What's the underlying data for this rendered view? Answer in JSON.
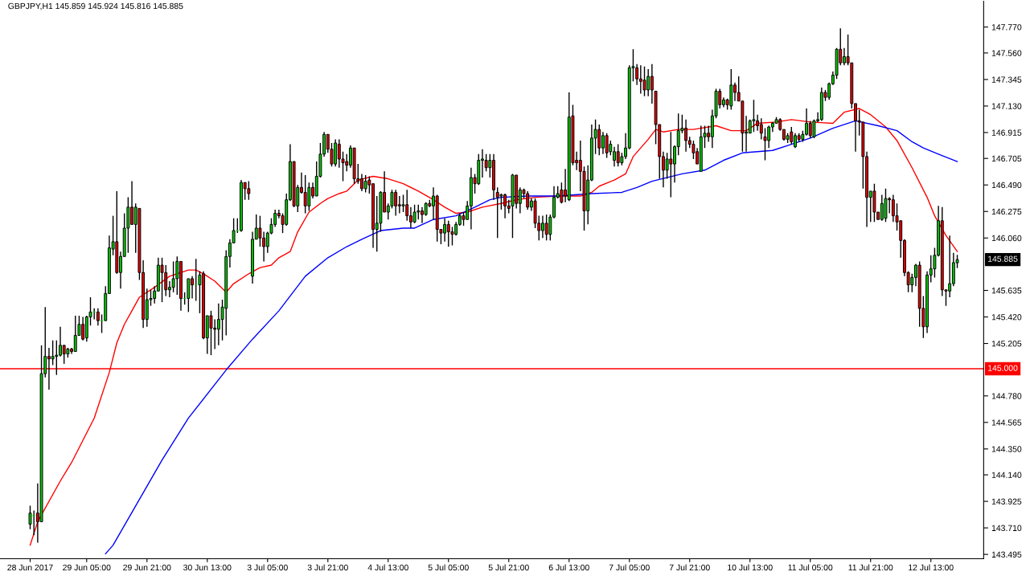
{
  "chart_data": {
    "type": "candlestick",
    "title": "GBPJPY,H1 145.859 145.924 145.816 145.885",
    "categories": [
      "28 Jun 2017",
      null,
      null,
      null,
      null,
      null,
      null,
      null,
      null,
      null,
      null,
      null,
      null,
      null,
      null,
      "29 Jun 05:00",
      null,
      null,
      null,
      null,
      null,
      null,
      null,
      null,
      null,
      null,
      null,
      null,
      null,
      null,
      null,
      "29 Jun 21:00",
      null,
      null,
      null,
      null,
      null,
      null,
      null,
      null,
      null,
      null,
      null,
      null,
      null,
      null,
      null,
      "30 Jun 13:00",
      null,
      null,
      null,
      null,
      null,
      null,
      null,
      null,
      null,
      null,
      null,
      null,
      null,
      null,
      null,
      "3 Jul 05:00",
      null,
      null,
      null,
      null,
      null,
      null,
      null,
      null,
      null,
      null,
      null,
      null,
      null,
      null,
      null,
      "3 Jul 21:00",
      null,
      null,
      null,
      null,
      null,
      null,
      null,
      null,
      null,
      null,
      null,
      null,
      null,
      null,
      null,
      "4 Jul 13:00",
      null,
      null,
      null,
      null,
      null,
      null,
      null,
      null,
      null,
      null,
      null,
      null,
      null,
      null,
      null,
      "5 Jul 05:00",
      null,
      null,
      null,
      null,
      null,
      null,
      null,
      null,
      null,
      null,
      null,
      null,
      null,
      null,
      null,
      "5 Jul 21:00",
      null,
      null,
      null,
      null,
      null,
      null,
      null,
      null,
      null,
      null,
      null,
      null,
      null,
      null,
      null,
      "6 Jul 13:00",
      null,
      null,
      null,
      null,
      null,
      null,
      null,
      null,
      null,
      null,
      null,
      null,
      null,
      null,
      null,
      "7 Jul 05:00",
      null,
      null,
      null,
      null,
      null,
      null,
      null,
      null,
      null,
      null,
      null,
      null,
      null,
      null,
      null,
      "7 Jul 21:00",
      null,
      null,
      null,
      null,
      null,
      null,
      null,
      null,
      null,
      null,
      null,
      null,
      null,
      null,
      null,
      "10 Jul 13:00",
      null,
      null,
      null,
      null,
      null,
      null,
      null,
      null,
      null,
      null,
      null,
      null,
      null,
      null,
      null,
      "11 Jul 05:00",
      null,
      null,
      null,
      null,
      null,
      null,
      null,
      null,
      null,
      null,
      null,
      null,
      null,
      null,
      null,
      "11 Jul 21:00",
      null,
      null,
      null,
      null,
      null,
      null,
      null,
      null,
      null,
      null,
      null,
      null,
      null,
      null,
      null,
      "12 Jul 13:00",
      null,
      null,
      null,
      null,
      null,
      null,
      null
    ],
    "ohlc": [
      [
        143.74,
        143.89,
        143.7,
        143.83
      ],
      [
        143.81,
        143.85,
        143.65,
        143.81
      ],
      [
        143.83,
        144.07,
        143.59,
        143.76
      ],
      [
        143.76,
        145.19,
        143.76,
        144.96
      ],
      [
        144.96,
        145.5,
        144.93,
        145.1
      ],
      [
        145.1,
        145.17,
        144.83,
        145.08
      ],
      [
        145.08,
        145.23,
        145.03,
        145.1
      ],
      [
        145.1,
        145.23,
        144.95,
        145.11
      ],
      [
        145.11,
        145.34,
        145.1,
        145.19
      ],
      [
        145.19,
        145.19,
        145.04,
        145.12
      ],
      [
        145.12,
        145.17,
        145.09,
        145.16
      ],
      [
        145.16,
        145.17,
        145.12,
        145.14
      ],
      [
        145.14,
        145.43,
        145.14,
        145.27
      ],
      [
        145.27,
        145.43,
        145.27,
        145.36
      ],
      [
        145.36,
        145.42,
        145.23,
        145.24
      ],
      [
        145.25,
        145.43,
        145.22,
        145.42
      ],
      [
        145.42,
        145.58,
        145.35,
        145.46
      ],
      [
        145.46,
        145.49,
        145.4,
        145.46
      ],
      [
        145.46,
        145.49,
        145.35,
        145.39
      ],
      [
        145.39,
        145.44,
        145.29,
        145.39
      ],
      [
        145.39,
        145.67,
        145.39,
        145.61
      ],
      [
        145.61,
        146.08,
        145.61,
        145.98
      ],
      [
        145.97,
        146.24,
        145.92,
        146.03
      ],
      [
        146.03,
        146.44,
        145.77,
        145.78
      ],
      [
        145.78,
        145.95,
        145.65,
        145.91
      ],
      [
        145.91,
        146.26,
        145.91,
        146.14
      ],
      [
        146.14,
        146.39,
        145.94,
        146.31
      ],
      [
        146.31,
        146.52,
        146.17,
        146.17
      ],
      [
        146.17,
        146.34,
        145.94,
        146.31
      ],
      [
        146.3,
        146.3,
        145.72,
        145.78
      ],
      [
        145.78,
        145.88,
        145.33,
        145.4
      ],
      [
        145.4,
        145.65,
        145.34,
        145.56
      ],
      [
        145.56,
        145.64,
        145.51,
        145.57
      ],
      [
        145.57,
        145.67,
        145.53,
        145.63
      ],
      [
        145.63,
        145.9,
        145.63,
        145.84
      ],
      [
        145.84,
        145.9,
        145.54,
        145.78
      ],
      [
        145.78,
        145.84,
        145.59,
        145.64
      ],
      [
        145.64,
        145.71,
        145.58,
        145.66
      ],
      [
        145.66,
        145.87,
        145.62,
        145.73
      ],
      [
        145.73,
        145.91,
        145.6,
        145.87
      ],
      [
        145.87,
        145.87,
        145.47,
        145.57
      ],
      [
        145.57,
        145.62,
        145.52,
        145.57
      ],
      [
        145.57,
        145.73,
        145.46,
        145.73
      ],
      [
        145.73,
        145.75,
        145.57,
        145.68
      ],
      [
        145.68,
        145.89,
        145.55,
        145.68
      ],
      [
        145.68,
        145.79,
        145.45,
        145.76
      ],
      [
        145.77,
        145.79,
        145.24,
        145.25
      ],
      [
        145.25,
        145.43,
        145.12,
        145.43
      ],
      [
        145.43,
        145.47,
        145.11,
        145.33
      ],
      [
        145.33,
        145.4,
        145.16,
        145.32
      ],
      [
        145.32,
        145.53,
        145.19,
        145.4
      ],
      [
        145.4,
        145.56,
        145.23,
        145.5
      ],
      [
        145.49,
        145.96,
        145.27,
        145.91
      ],
      [
        145.91,
        146.05,
        145.82,
        146.02
      ],
      [
        146.02,
        146.22,
        146.02,
        146.12
      ],
      [
        146.12,
        146.22,
        146.1,
        146.12
      ],
      [
        146.12,
        146.53,
        146.11,
        146.51
      ],
      [
        146.51,
        146.51,
        146.37,
        146.46
      ],
      [
        146.46,
        146.52,
        146.37,
        146.42
      ],
      [
        145.75,
        146.11,
        145.69,
        146.05
      ],
      [
        146.05,
        146.25,
        146.05,
        146.14
      ],
      [
        146.14,
        146.24,
        145.99,
        146.06
      ],
      [
        146.06,
        146.11,
        145.87,
        145.99
      ],
      [
        145.99,
        146.11,
        145.94,
        146.1
      ],
      [
        146.1,
        146.22,
        146.09,
        146.17
      ],
      [
        146.17,
        146.29,
        146.15,
        146.26
      ],
      [
        146.26,
        146.29,
        146.22,
        146.24
      ],
      [
        146.24,
        146.26,
        146.1,
        146.17
      ],
      [
        146.17,
        146.42,
        146.16,
        146.37
      ],
      [
        146.37,
        146.82,
        146.36,
        146.68
      ],
      [
        146.68,
        146.68,
        146.31,
        146.32
      ],
      [
        146.32,
        146.49,
        146.27,
        146.47
      ],
      [
        146.47,
        146.59,
        146.42,
        146.43
      ],
      [
        146.43,
        146.57,
        146.26,
        146.32
      ],
      [
        146.32,
        146.51,
        146.28,
        146.47
      ],
      [
        146.47,
        146.51,
        146.38,
        146.4
      ],
      [
        146.4,
        146.68,
        146.4,
        146.56
      ],
      [
        146.56,
        146.83,
        146.55,
        146.74
      ],
      [
        146.74,
        146.92,
        146.72,
        146.9
      ],
      [
        146.9,
        146.9,
        146.75,
        146.78
      ],
      [
        146.78,
        146.83,
        146.64,
        146.66
      ],
      [
        146.66,
        146.86,
        146.64,
        146.83
      ],
      [
        146.82,
        146.86,
        146.63,
        146.7
      ],
      [
        146.7,
        146.76,
        146.52,
        146.67
      ],
      [
        146.68,
        146.74,
        146.6,
        146.65
      ],
      [
        146.65,
        146.81,
        146.63,
        146.79
      ],
      [
        146.79,
        146.79,
        146.5,
        146.54
      ],
      [
        146.54,
        146.66,
        146.5,
        146.52
      ],
      [
        146.54,
        146.58,
        146.44,
        146.46
      ],
      [
        146.46,
        146.57,
        146.43,
        146.52
      ],
      [
        146.53,
        146.56,
        146.42,
        146.49
      ],
      [
        146.5,
        146.5,
        145.98,
        146.13
      ],
      [
        146.13,
        146.4,
        145.95,
        146.18
      ],
      [
        146.18,
        146.44,
        146.11,
        146.43
      ],
      [
        146.43,
        146.6,
        146.27,
        146.27
      ],
      [
        146.27,
        146.34,
        146.21,
        146.32
      ],
      [
        146.32,
        146.45,
        146.3,
        146.43
      ],
      [
        146.43,
        146.45,
        146.24,
        146.32
      ],
      [
        146.33,
        146.4,
        146.26,
        146.32
      ],
      [
        146.32,
        146.41,
        146.27,
        146.33
      ],
      [
        146.33,
        146.45,
        146.2,
        146.24
      ],
      [
        146.24,
        146.31,
        146.14,
        146.19
      ],
      [
        146.19,
        146.33,
        146.18,
        146.27
      ],
      [
        146.27,
        146.33,
        146.21,
        146.28
      ],
      [
        146.28,
        146.31,
        146.18,
        146.25
      ],
      [
        146.25,
        146.35,
        146.24,
        146.34
      ],
      [
        146.34,
        146.37,
        146.31,
        146.32
      ],
      [
        146.32,
        146.47,
        146.21,
        146.4
      ],
      [
        146.4,
        146.41,
        146.03,
        146.13
      ],
      [
        146.13,
        146.13,
        146.01,
        146.1
      ],
      [
        146.1,
        146.22,
        146.03,
        146.17
      ],
      [
        146.17,
        146.2,
        145.99,
        146.11
      ],
      [
        146.11,
        146.15,
        146.0,
        146.09
      ],
      [
        146.09,
        146.19,
        146.08,
        146.17
      ],
      [
        146.17,
        146.26,
        146.16,
        146.24
      ],
      [
        146.24,
        146.27,
        146.16,
        146.21
      ],
      [
        146.21,
        146.36,
        146.21,
        146.32
      ],
      [
        146.32,
        146.63,
        146.13,
        146.55
      ],
      [
        146.55,
        146.58,
        146.42,
        146.5
      ],
      [
        146.5,
        146.74,
        146.49,
        146.69
      ],
      [
        146.69,
        146.78,
        146.55,
        146.7
      ],
      [
        146.69,
        146.74,
        146.6,
        146.63
      ],
      [
        146.63,
        146.74,
        146.55,
        146.69
      ],
      [
        146.69,
        146.74,
        146.37,
        146.45
      ],
      [
        146.43,
        146.47,
        146.06,
        146.39
      ],
      [
        146.4,
        146.42,
        146.29,
        146.41
      ],
      [
        146.41,
        146.42,
        146.22,
        146.32
      ],
      [
        146.32,
        146.37,
        146.26,
        146.3
      ],
      [
        146.32,
        146.58,
        146.06,
        146.57
      ],
      [
        146.57,
        146.57,
        146.3,
        146.34
      ],
      [
        146.34,
        146.47,
        146.26,
        146.45
      ],
      [
        146.45,
        146.46,
        146.38,
        146.42
      ],
      [
        146.42,
        146.44,
        146.29,
        146.31
      ],
      [
        146.31,
        146.38,
        146.28,
        146.36
      ],
      [
        146.36,
        146.38,
        146.14,
        146.18
      ],
      [
        146.18,
        146.24,
        146.04,
        146.12
      ],
      [
        146.12,
        146.24,
        146.06,
        146.18
      ],
      [
        146.18,
        146.25,
        146.04,
        146.09
      ],
      [
        146.09,
        146.25,
        146.04,
        146.23
      ],
      [
        146.23,
        146.48,
        146.22,
        146.39
      ],
      [
        146.39,
        146.48,
        146.38,
        146.42
      ],
      [
        146.45,
        146.51,
        146.34,
        146.35
      ],
      [
        146.45,
        146.62,
        146.35,
        146.4
      ],
      [
        146.37,
        147.24,
        146.36,
        147.04
      ],
      [
        147.05,
        147.14,
        146.65,
        146.67
      ],
      [
        146.69,
        146.76,
        146.61,
        146.67
      ],
      [
        146.69,
        146.85,
        146.44,
        146.6
      ],
      [
        146.6,
        146.64,
        146.12,
        146.28
      ],
      [
        146.28,
        146.65,
        146.17,
        146.53
      ],
      [
        146.53,
        146.98,
        146.52,
        146.87
      ],
      [
        146.87,
        147.02,
        146.74,
        146.94
      ],
      [
        146.94,
        146.98,
        146.73,
        146.79
      ],
      [
        146.79,
        146.92,
        146.74,
        146.89
      ],
      [
        146.89,
        146.91,
        146.71,
        146.75
      ],
      [
        146.76,
        146.85,
        146.73,
        146.82
      ],
      [
        146.69,
        146.8,
        146.64,
        146.76
      ],
      [
        146.76,
        146.82,
        146.64,
        146.67
      ],
      [
        146.67,
        146.75,
        146.65,
        146.72
      ],
      [
        146.72,
        146.91,
        146.7,
        146.79
      ],
      [
        146.79,
        147.46,
        146.78,
        147.44
      ],
      [
        147.44,
        147.59,
        147.33,
        147.45
      ],
      [
        147.44,
        147.47,
        147.3,
        147.35
      ],
      [
        147.35,
        147.46,
        147.23,
        147.33
      ],
      [
        147.34,
        147.45,
        147.21,
        147.26
      ],
      [
        147.26,
        147.43,
        147.21,
        147.37
      ],
      [
        147.37,
        147.47,
        147.15,
        147.26
      ],
      [
        147.25,
        147.25,
        146.82,
        146.98
      ],
      [
        146.98,
        146.98,
        146.54,
        146.72
      ],
      [
        146.72,
        146.76,
        146.47,
        146.61
      ],
      [
        146.61,
        146.75,
        146.54,
        146.7
      ],
      [
        146.7,
        146.92,
        146.39,
        146.66
      ],
      [
        146.66,
        146.81,
        146.51,
        146.8
      ],
      [
        146.8,
        147.07,
        146.73,
        146.93
      ],
      [
        146.93,
        147.06,
        146.91,
        146.95
      ],
      [
        146.95,
        147.02,
        146.76,
        146.85
      ],
      [
        146.85,
        146.88,
        146.79,
        146.82
      ],
      [
        146.82,
        146.85,
        146.7,
        146.75
      ],
      [
        146.76,
        146.79,
        146.66,
        146.66
      ],
      [
        146.6,
        146.97,
        146.6,
        146.88
      ],
      [
        146.88,
        146.97,
        146.79,
        146.91
      ],
      [
        146.91,
        146.97,
        146.84,
        146.88
      ],
      [
        146.88,
        147.1,
        146.79,
        147.05
      ],
      [
        147.05,
        147.27,
        147.03,
        147.25
      ],
      [
        147.25,
        147.27,
        147.11,
        147.14
      ],
      [
        147.14,
        147.2,
        147.12,
        147.18
      ],
      [
        147.18,
        147.19,
        147.1,
        147.14
      ],
      [
        147.13,
        147.43,
        147.1,
        147.3
      ],
      [
        147.3,
        147.32,
        147.17,
        147.24
      ],
      [
        147.24,
        147.37,
        147.17,
        147.17
      ],
      [
        147.17,
        147.17,
        146.76,
        146.91
      ],
      [
        146.91,
        147.05,
        146.76,
        146.92
      ],
      [
        146.91,
        147.02,
        146.91,
        147.01
      ],
      [
        147.01,
        147.18,
        146.92,
        147.02
      ],
      [
        147.01,
        147.06,
        146.93,
        146.97
      ],
      [
        146.98,
        147.03,
        146.86,
        146.91
      ],
      [
        146.88,
        146.95,
        146.69,
        146.85
      ],
      [
        146.85,
        146.97,
        146.79,
        146.96
      ],
      [
        146.96,
        147.0,
        146.92,
        146.99
      ],
      [
        146.99,
        147.04,
        146.99,
        147.02
      ],
      [
        147.02,
        147.03,
        146.93,
        146.94
      ],
      [
        146.94,
        146.94,
        146.85,
        146.86
      ],
      [
        146.86,
        146.91,
        146.83,
        146.89
      ],
      [
        146.92,
        146.96,
        146.82,
        146.84
      ],
      [
        146.8,
        146.91,
        146.79,
        146.89
      ],
      [
        146.89,
        146.91,
        146.84,
        146.86
      ],
      [
        146.86,
        146.93,
        146.84,
        146.9
      ],
      [
        146.9,
        147.11,
        146.89,
        146.99
      ],
      [
        146.99,
        147.01,
        146.87,
        146.89
      ],
      [
        146.88,
        147.02,
        146.87,
        147.01
      ],
      [
        147.01,
        147.08,
        147.0,
        147.02
      ],
      [
        147.02,
        147.28,
        147.01,
        147.24
      ],
      [
        147.24,
        147.26,
        147.17,
        147.2
      ],
      [
        147.2,
        147.32,
        147.18,
        147.31
      ],
      [
        147.31,
        147.41,
        147.3,
        147.38
      ],
      [
        147.38,
        147.6,
        147.35,
        147.59
      ],
      [
        147.59,
        147.76,
        147.46,
        147.48
      ],
      [
        147.48,
        147.6,
        147.46,
        147.53
      ],
      [
        147.53,
        147.71,
        147.46,
        147.48
      ],
      [
        147.48,
        147.48,
        147.11,
        147.15
      ],
      [
        147.15,
        147.15,
        146.76,
        147.01
      ],
      [
        147.01,
        147.1,
        146.89,
        147.0
      ],
      [
        147.0,
        147.0,
        146.46,
        146.72
      ],
      [
        146.72,
        146.76,
        146.15,
        146.39
      ],
      [
        146.39,
        146.44,
        146.19,
        146.44
      ],
      [
        146.44,
        146.5,
        146.19,
        146.27
      ],
      [
        146.27,
        146.27,
        146.21,
        146.21
      ],
      [
        146.21,
        146.41,
        146.2,
        146.34
      ],
      [
        146.22,
        146.46,
        146.19,
        146.38
      ],
      [
        146.38,
        146.39,
        146.26,
        146.37
      ],
      [
        146.37,
        146.41,
        146.19,
        146.24
      ],
      [
        146.24,
        146.34,
        146.12,
        146.19
      ],
      [
        146.2,
        146.2,
        145.9,
        146.04
      ],
      [
        146.04,
        146.05,
        145.75,
        145.78
      ],
      [
        145.78,
        145.79,
        145.62,
        145.68
      ],
      [
        145.68,
        145.77,
        145.62,
        145.74
      ],
      [
        145.74,
        145.85,
        145.67,
        145.84
      ],
      [
        145.84,
        145.87,
        145.34,
        145.49
      ],
      [
        145.49,
        145.59,
        145.25,
        145.34
      ],
      [
        145.34,
        145.79,
        145.29,
        145.76
      ],
      [
        145.76,
        145.92,
        145.7,
        145.81
      ],
      [
        145.81,
        145.98,
        145.74,
        145.92
      ],
      [
        145.92,
        146.32,
        145.91,
        146.2
      ],
      [
        146.2,
        146.31,
        145.59,
        145.64
      ],
      [
        145.64,
        145.64,
        145.51,
        145.63
      ],
      [
        145.63,
        146.08,
        145.58,
        145.69
      ],
      [
        145.69,
        145.94,
        145.67,
        145.86
      ],
      [
        145.859,
        145.924,
        145.816,
        145.885
      ]
    ],
    "colors": [
      "#00c800",
      "#00c800",
      "#e00000",
      "#00c800",
      "#00c800",
      "#e00000",
      "#00c800",
      "#00c800",
      "#00c800",
      "#e00000",
      "#00c800",
      "#e00000",
      "#00c800",
      "#00c800",
      "#e00000",
      "#00c800",
      "#00c800",
      "#00c800",
      "#e00000",
      "#00c800",
      "#00c800",
      "#00c800",
      "#00c800",
      "#e00000",
      "#00c800",
      "#00c800",
      "#00c800",
      "#e00000",
      "#00c800",
      "#e00000",
      "#e00000",
      "#00c800",
      "#00c800",
      "#00c800",
      "#00c800",
      "#e00000",
      "#e00000",
      "#00c800",
      "#00c800",
      "#00c800",
      "#e00000",
      "#00c800",
      "#00c800",
      "#e00000",
      "#00c800",
      "#00c800",
      "#e00000",
      "#00c800",
      "#e00000",
      "#e00000",
      "#00c800",
      "#00c800",
      "#00c800",
      "#00c800",
      "#00c800",
      "#00c800",
      "#00c800",
      "#e00000",
      "#e00000",
      "#00c800",
      "#00c800",
      "#e00000",
      "#e00000",
      "#00c800",
      "#00c800",
      "#00c800",
      "#e00000",
      "#e00000",
      "#00c800",
      "#00c800",
      "#e00000",
      "#00c800",
      "#e00000",
      "#e00000",
      "#00c800",
      "#e00000",
      "#00c800",
      "#00c800",
      "#00c800",
      "#e00000",
      "#e00000",
      "#00c800",
      "#e00000",
      "#e00000",
      "#e00000",
      "#00c800",
      "#e00000",
      "#e00000",
      "#e00000",
      "#00c800",
      "#e00000",
      "#e00000",
      "#00c800",
      "#00c800",
      "#e00000",
      "#00c800",
      "#00c800",
      "#e00000",
      "#e00000",
      "#00c800",
      "#e00000",
      "#e00000",
      "#00c800",
      "#00c800",
      "#e00000",
      "#00c800",
      "#e00000",
      "#00c800",
      "#e00000",
      "#e00000",
      "#00c800",
      "#e00000",
      "#e00000",
      "#00c800",
      "#00c800",
      "#e00000",
      "#00c800",
      "#00c800",
      "#e00000",
      "#00c800",
      "#00c800",
      "#e00000",
      "#00c800",
      "#e00000",
      "#e00000",
      "#00c800",
      "#e00000",
      "#e00000",
      "#00c800",
      "#e00000",
      "#00c800",
      "#e00000",
      "#e00000",
      "#00c800",
      "#e00000",
      "#e00000",
      "#00c800",
      "#e00000",
      "#00c800",
      "#00c800",
      "#00c800",
      "#e00000",
      "#e00000",
      "#00c800",
      "#e00000",
      "#e00000",
      "#e00000",
      "#e00000",
      "#00c800",
      "#00c800",
      "#00c800",
      "#e00000",
      "#00c800",
      "#e00000",
      "#00c800",
      "#00c800",
      "#e00000",
      "#00c800",
      "#00c800",
      "#00c800",
      "#00c800",
      "#e00000",
      "#e00000",
      "#e00000",
      "#00c800",
      "#e00000",
      "#e00000",
      "#e00000",
      "#e00000",
      "#00c800",
      "#e00000",
      "#00c800",
      "#00c800",
      "#00c800",
      "#e00000",
      "#e00000",
      "#e00000",
      "#e00000",
      "#00c800",
      "#00c800",
      "#e00000",
      "#00c800",
      "#00c800",
      "#e00000",
      "#00c800",
      "#e00000",
      "#00c800",
      "#e00000",
      "#e00000",
      "#e00000",
      "#00c800",
      "#00c800",
      "#00c800",
      "#e00000",
      "#e00000",
      "#e00000",
      "#00c800",
      "#00c800",
      "#00c800",
      "#e00000",
      "#e00000",
      "#00c800",
      "#e00000",
      "#00c800",
      "#e00000",
      "#00c800",
      "#00c800",
      "#e00000",
      "#00c800",
      "#00c800",
      "#00c800",
      "#e00000",
      "#00c800",
      "#00c800",
      "#00c800",
      "#e00000",
      "#00c800",
      "#e00000",
      "#e00000",
      "#e00000",
      "#e00000",
      "#e00000",
      "#e00000",
      "#00c800",
      "#e00000",
      "#e00000",
      "#00c800",
      "#00c800",
      "#e00000",
      "#e00000",
      "#e00000",
      "#e00000",
      "#e00000",
      "#e00000",
      "#00c800",
      "#00c800",
      "#e00000",
      "#e00000",
      "#00c800",
      "#00c800",
      "#00c800",
      "#00c800",
      "#e00000",
      "#e00000",
      "#00c800",
      "#00c800",
      "#00c800"
    ],
    "series": [
      {
        "type": "line",
        "color": "#ff0000",
        "values": [
          143.57,
          null,
          143.76,
          null,
          null,
          null,
          null,
          null,
          144.09,
          null,
          null,
          144.24,
          null,
          null,
          null,
          null,
          null,
          144.6,
          null,
          null,
          null,
          144.97,
          null,
          145.21,
          null,
          145.36,
          null,
          145.47,
          null,
          145.58,
          null,
          null,
          null,
          145.66,
          null,
          null,
          null,
          145.75,
          null,
          null,
          null,
          null,
          145.8,
          null,
          145.8,
          null,
          145.77,
          null,
          null,
          145.71,
          null,
          null,
          145.62,
          null,
          145.69,
          null,
          null,
          null,
          145.77,
          null,
          null,
          145.82,
          null,
          null,
          145.84,
          null,
          145.9,
          null,
          null,
          145.95,
          null,
          146.11,
          null,
          null,
          146.27,
          null,
          null,
          146.34,
          null,
          146.38,
          null,
          null,
          146.42,
          null,
          146.44,
          null,
          null,
          146.53,
          null,
          null,
          null,
          146.56,
          null,
          null,
          null,
          146.54,
          null,
          null,
          null,
          146.5,
          null,
          null,
          null,
          146.44,
          null,
          null,
          null,
          146.37,
          null,
          null,
          146.31,
          null,
          null,
          146.26,
          null,
          null,
          146.27,
          null,
          null,
          null,
          146.31,
          null,
          null,
          null,
          null,
          146.34,
          null,
          null,
          null,
          146.37,
          null,
          null,
          null,
          null,
          146.39,
          null,
          null,
          null,
          null,
          null,
          146.4,
          null,
          null,
          null,
          null,
          null,
          146.4,
          null,
          null,
          146.43,
          null,
          146.48,
          null,
          null,
          null,
          146.53,
          null,
          null,
          146.58,
          null,
          146.72,
          null,
          null,
          null,
          146.86,
          null,
          146.94,
          null,
          146.92,
          null,
          null,
          null,
          146.94,
          null,
          null,
          null,
          146.94,
          null,
          null,
          null,
          null,
          null,
          146.97,
          null,
          null,
          null,
          146.93,
          null,
          null,
          null,
          146.93,
          null,
          null,
          146.99,
          null,
          null,
          null,
          null,
          147.0,
          null,
          null,
          null,
          147.02,
          null,
          null,
          null,
          null,
          147.0,
          null,
          null,
          null,
          null,
          null,
          146.99,
          null,
          null,
          147.08,
          null,
          null,
          null,
          147.11,
          null,
          null,
          147.06,
          null,
          null,
          null,
          146.96,
          null,
          null,
          146.85,
          null,
          null,
          null,
          146.63,
          null,
          null,
          null,
          146.39,
          null,
          146.24,
          null,
          null,
          146.08,
          null,
          null,
          145.95
        ]
      },
      {
        "type": "line",
        "color": "#0000ff",
        "values": [
          null,
          null,
          null,
          null,
          null,
          null,
          null,
          null,
          null,
          null,
          null,
          null,
          null,
          null,
          null,
          null,
          null,
          null,
          null,
          null,
          143.5,
          null,
          143.57,
          null,
          null,
          null,
          null,
          null,
          null,
          null,
          null,
          null,
          null,
          null,
          null,
          144.26,
          null,
          null,
          null,
          null,
          null,
          null,
          144.6,
          null,
          null,
          null,
          null,
          null,
          null,
          null,
          null,
          null,
          144.99,
          null,
          null,
          null,
          null,
          null,
          null,
          145.24,
          null,
          null,
          null,
          null,
          null,
          null,
          145.47,
          null,
          null,
          null,
          null,
          null,
          null,
          145.75,
          null,
          null,
          null,
          null,
          null,
          145.9,
          null,
          null,
          null,
          null,
          145.99,
          null,
          null,
          null,
          146.05,
          null,
          null,
          null,
          null,
          146.12,
          null,
          null,
          null,
          null,
          null,
          146.14,
          null,
          null,
          146.14,
          null,
          null,
          null,
          null,
          146.21,
          null,
          null,
          null,
          null,
          null,
          146.24,
          null,
          null,
          null,
          null,
          146.31,
          null,
          null,
          null,
          146.37,
          null,
          null,
          146.39,
          null,
          null,
          null,
          null,
          null,
          null,
          146.4,
          null,
          null,
          null,
          null,
          null,
          null,
          null,
          146.4,
          null,
          null,
          null,
          null,
          null,
          null,
          null,
          null,
          146.42,
          null,
          null,
          null,
          null,
          null,
          null,
          null,
          146.43,
          null,
          null,
          null,
          146.47,
          null,
          null,
          null,
          146.52,
          null,
          null,
          null,
          null,
          null,
          null,
          null,
          146.58,
          null,
          null,
          null,
          null,
          null,
          146.61,
          null,
          null,
          null,
          null,
          146.69,
          null,
          null,
          null,
          null,
          146.75,
          null,
          null,
          null,
          null,
          null,
          null,
          null,
          146.77,
          null,
          null,
          null,
          null,
          146.82,
          null,
          null,
          null,
          null,
          146.87,
          null,
          null,
          null,
          null,
          null,
          146.95,
          null,
          null,
          null,
          null,
          null,
          147.01,
          null,
          null,
          null,
          null,
          null,
          146.97,
          null,
          null,
          null,
          null,
          146.93,
          null,
          null,
          null,
          146.84,
          null,
          null,
          146.79,
          null,
          null,
          null,
          146.74,
          null,
          null,
          null,
          null,
          146.68
        ]
      }
    ],
    "ylim": [
      143.46,
      147.98
    ],
    "yticks": [
      {
        "value": 147.77,
        "label": "147.770"
      },
      {
        "value": 147.56,
        "label": "147.560"
      },
      {
        "value": 147.345,
        "label": "147.345"
      },
      {
        "value": 147.13,
        "label": "147.130"
      },
      {
        "value": 146.915,
        "label": "146.915"
      },
      {
        "value": 146.705,
        "label": "146.705"
      },
      {
        "value": 146.49,
        "label": "146.490"
      },
      {
        "value": 146.275,
        "label": "146.275"
      },
      {
        "value": 146.06,
        "label": "146.060"
      },
      {
        "value": 145.635,
        "label": "145.635"
      },
      {
        "value": 145.42,
        "label": "145.420"
      },
      {
        "value": 145.205,
        "label": "145.205"
      },
      {
        "value": 144.78,
        "label": "144.780"
      },
      {
        "value": 144.565,
        "label": "144.565"
      },
      {
        "value": 144.35,
        "label": "144.350"
      },
      {
        "value": 144.14,
        "label": "144.140"
      },
      {
        "value": 143.925,
        "label": "143.925"
      },
      {
        "value": 143.71,
        "label": "143.710"
      },
      {
        "value": 143.495,
        "label": "143.495"
      }
    ],
    "ref_lines": [
      {
        "axis": "y",
        "value": 145.0,
        "label": "145.000",
        "color": "#ff0000"
      }
    ],
    "annotations": [
      "145.885"
    ],
    "grid": false
  }
}
